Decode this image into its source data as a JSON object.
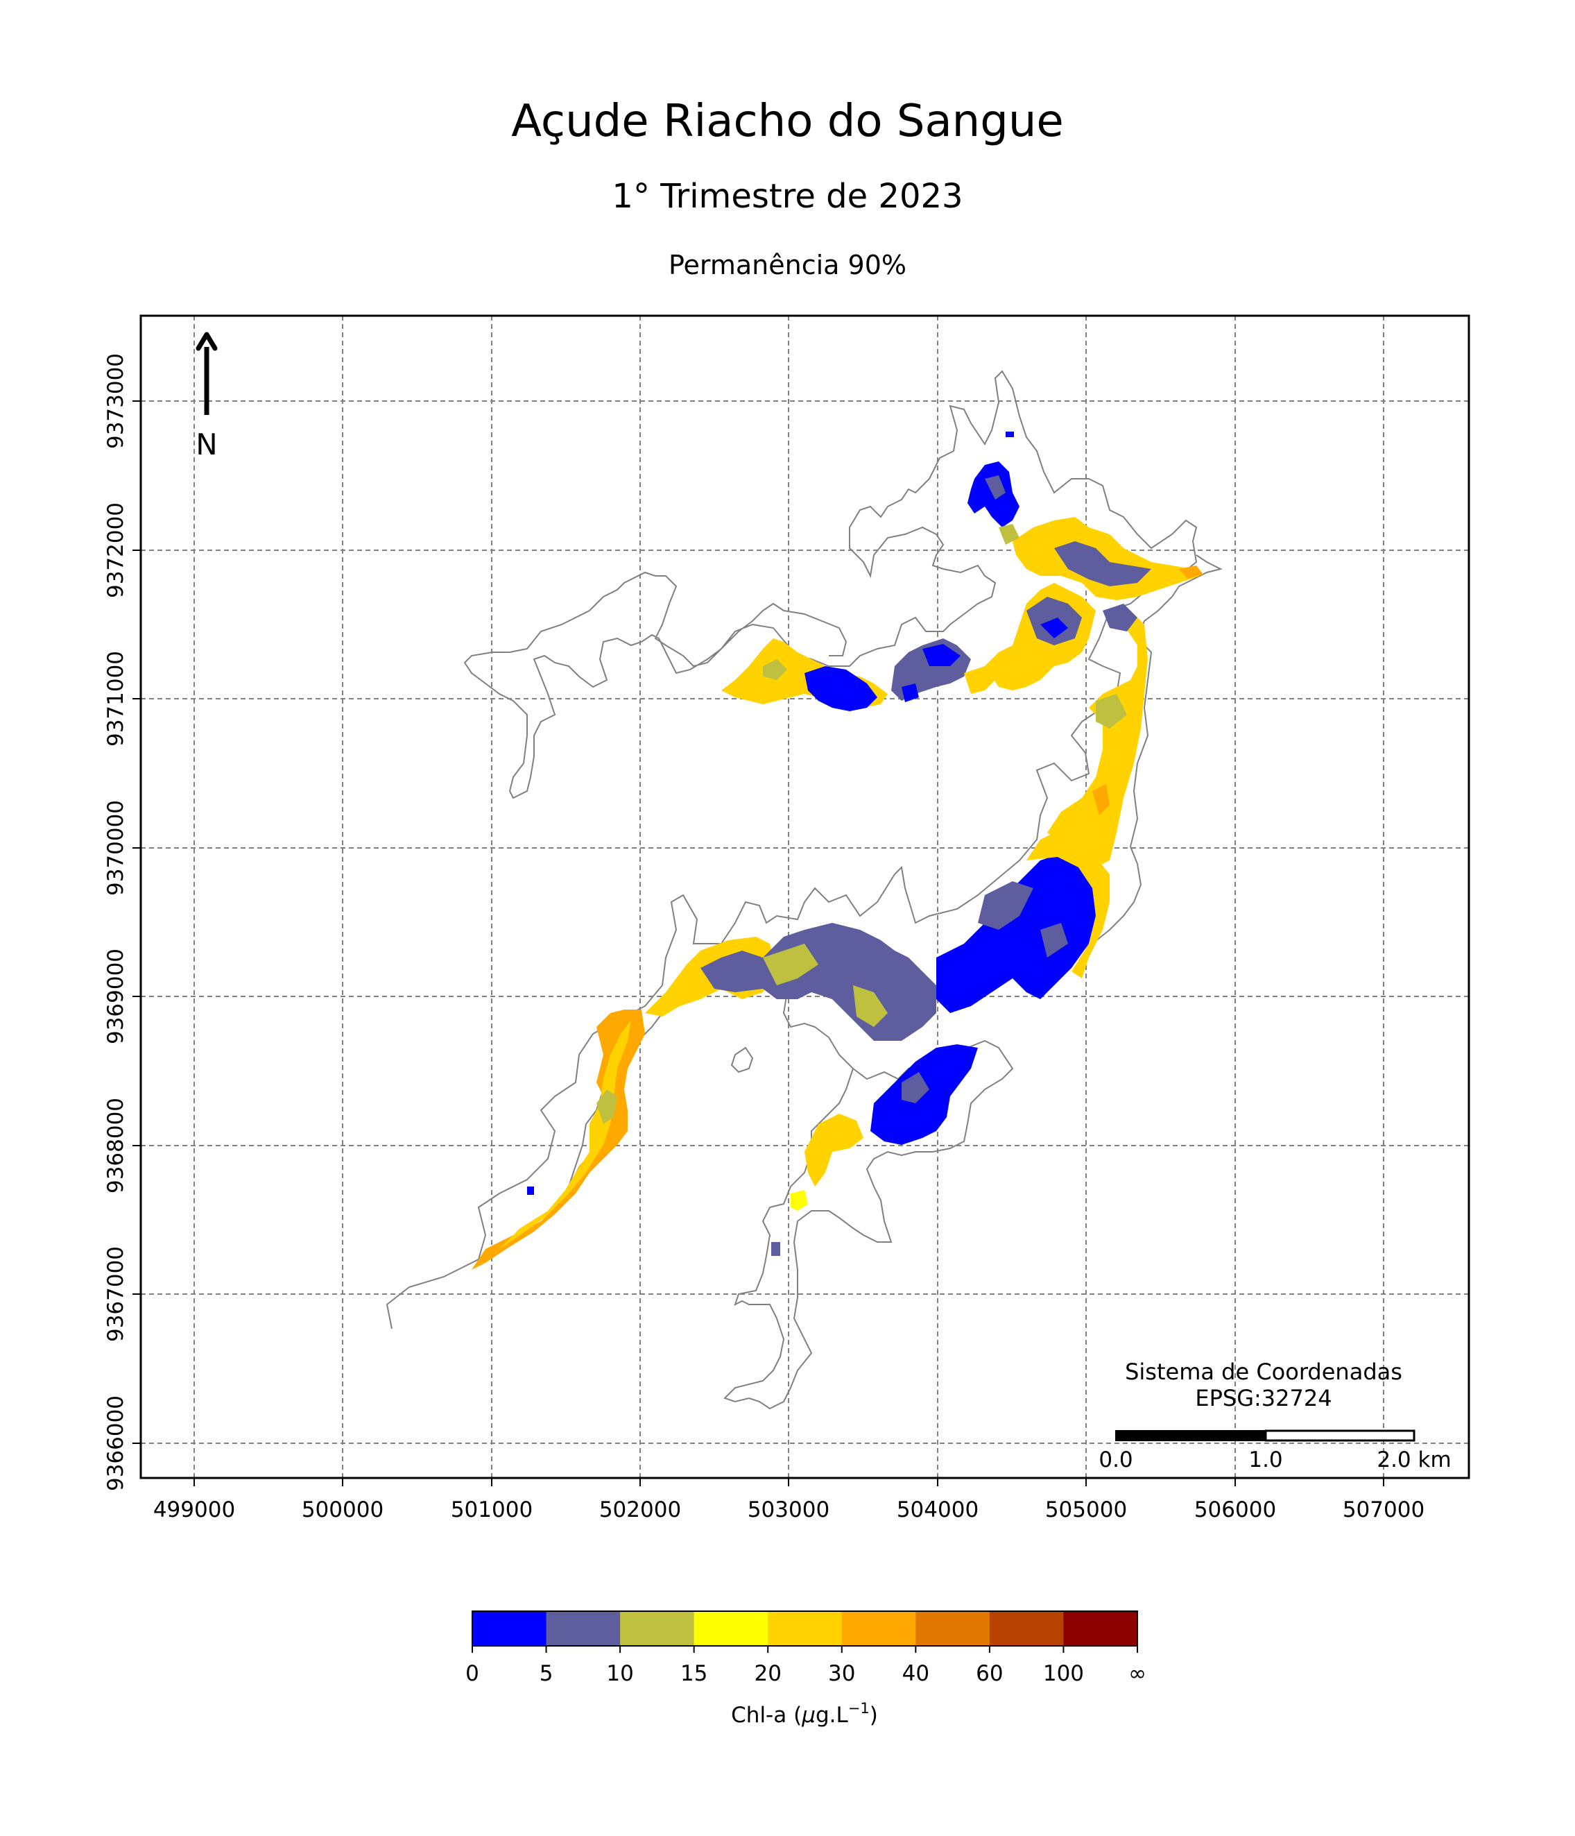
{
  "title": "Açude Riacho do Sangue",
  "subtitle": "1° Trimestre de 2023",
  "subtitle2": "Permanência 90%",
  "north_label": "N",
  "crs": {
    "line1": "Sistema de Coordenadas",
    "line2": "EPSG:32724"
  },
  "scalebar": {
    "labels": [
      "0.0",
      "1.0",
      "2.0 km"
    ],
    "segments_km": [
      1.0,
      1.0
    ]
  },
  "axes": {
    "x_ticks": [
      "499000",
      "500000",
      "501000",
      "502000",
      "503000",
      "504000",
      "505000",
      "506000",
      "507000"
    ],
    "y_ticks": [
      "9366000",
      "9367000",
      "9368000",
      "9369000",
      "9370000",
      "9371000",
      "9372000",
      "9373000"
    ],
    "xlim": [
      498650,
      507560
    ],
    "ylim": [
      9365760,
      9373580
    ],
    "grid": true
  },
  "colorbar": {
    "label_main": "Chl-a (",
    "label_mu": "μ",
    "label_rest": "g.L",
    "label_sup": "−1",
    "label_close": ")",
    "ticks": [
      "0",
      "5",
      "10",
      "15",
      "20",
      "30",
      "40",
      "60",
      "100",
      "∞"
    ],
    "colors": [
      "#0000ff",
      "#5e5e9e",
      "#c0c040",
      "#ffff00",
      "#ffd200",
      "#ffa800",
      "#e07800",
      "#b84300",
      "#8b0000"
    ]
  },
  "colors": {
    "outline": "#808080",
    "grid": "#808080"
  }
}
